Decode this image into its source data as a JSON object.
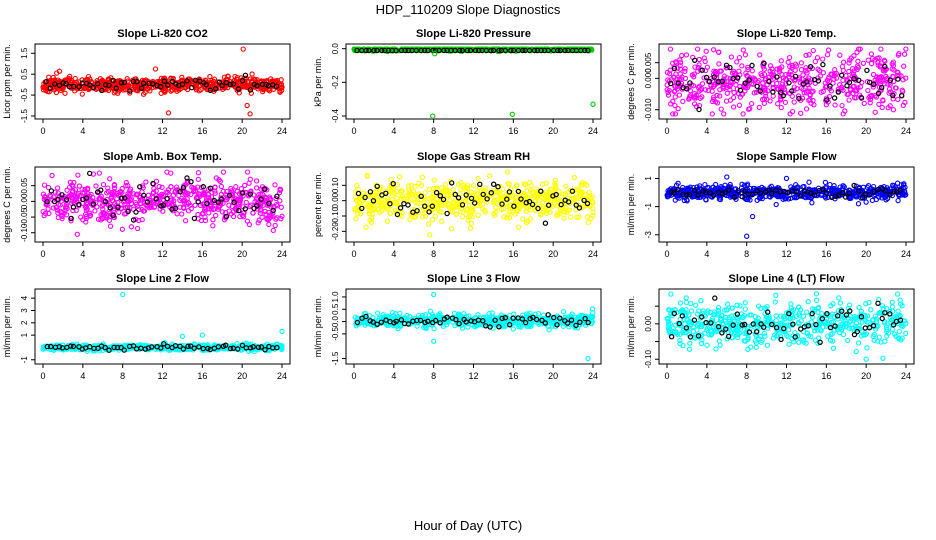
{
  "figure": {
    "title": "HDP_110209  Slope Diagnostics",
    "xlabel": "Hour of Day (UTC)"
  },
  "colors": {
    "red": "#ff0000",
    "green": "#00cc00",
    "magenta": "#ff00ff",
    "yellow": "#ffff00",
    "blue": "#0000ff",
    "cyan": "#00ffff",
    "black": "#000000"
  },
  "chart_data": [
    {
      "type": "scatter",
      "title": "Slope Li-820 CO2",
      "ylabel": "Licor ppm per min.",
      "xlim": [
        0,
        24
      ],
      "ylim": [
        -1.5,
        1.8
      ],
      "xticks": [
        0,
        4,
        8,
        12,
        16,
        20,
        24
      ],
      "xtick_labels": [
        "0",
        "4",
        "8",
        "12",
        "16",
        "20",
        "24"
      ],
      "yticks": [
        -1.5,
        -0.5,
        0.5,
        1.5
      ],
      "ytick_labels": [
        "-1.5",
        "-0.5",
        "0.5",
        "1.5"
      ],
      "color": "red",
      "n": 620,
      "center": 0,
      "spread": 0.18,
      "seed": 11,
      "outliers": [
        [
          20.1,
          1.7
        ],
        [
          12.6,
          -1.35
        ],
        [
          11.3,
          0.75
        ],
        [
          20.5,
          -1.0
        ],
        [
          20.8,
          -1.4
        ]
      ]
    },
    {
      "type": "scatter",
      "title": "Slope Li-820 Pressure",
      "ylabel": "kPa per min.",
      "xlim": [
        0,
        24
      ],
      "ylim": [
        -0.4,
        0.01
      ],
      "xticks": [
        0,
        4,
        8,
        12,
        16,
        20,
        24
      ],
      "xtick_labels": [
        "0",
        "4",
        "8",
        "12",
        "16",
        "20",
        "24"
      ],
      "yticks": [
        0,
        -0.2,
        -0.4
      ],
      "ytick_labels": [
        "0.0",
        "-0.2",
        "-0.4"
      ],
      "color": "green",
      "n": 520,
      "center": -0.005,
      "spread": 0.004,
      "seed": 22,
      "outliers": [
        [
          7.9,
          -0.4
        ],
        [
          15.9,
          -0.39
        ],
        [
          24,
          -0.33
        ],
        [
          8.1,
          -0.03
        ]
      ]
    },
    {
      "type": "scatter",
      "title": "Slope Li-820 Temp.",
      "ylabel": "degrees C per min.",
      "xlim": [
        0,
        24
      ],
      "ylim": [
        -0.012,
        0.01
      ],
      "xticks": [
        0,
        4,
        8,
        12,
        16,
        20,
        24
      ],
      "xtick_labels": [
        "0",
        "4",
        "8",
        "12",
        "16",
        "20",
        "24"
      ],
      "yticks": [
        -0.01,
        0,
        0.005
      ],
      "ytick_labels": [
        "-0.010",
        "0.000",
        "0.005"
      ],
      "color": "magenta",
      "n": 560,
      "center": -0.001,
      "spread": 0.0045,
      "seed": 33,
      "outliers": []
    },
    {
      "type": "scatter",
      "title": "Slope Amb. Box Temp.",
      "ylabel": "degrees C per min.",
      "xlim": [
        0,
        24
      ],
      "ylim": [
        -0.12,
        0.1
      ],
      "xticks": [
        0,
        4,
        8,
        12,
        16,
        20,
        24
      ],
      "xtick_labels": [
        "0",
        "4",
        "8",
        "12",
        "16",
        "20",
        "24"
      ],
      "yticks": [
        -0.1,
        -0.05,
        0,
        0.05
      ],
      "ytick_labels": [
        "-0.10",
        "-0.05",
        "0.00",
        "0.05"
      ],
      "color": "magenta",
      "n": 600,
      "center": 0.0,
      "spread": 0.035,
      "seed": 44,
      "outliers": []
    },
    {
      "type": "scatter",
      "title": "Slope Gas Stream RH",
      "ylabel": "percent per min.",
      "xlim": [
        0,
        24
      ],
      "ylim": [
        -0.25,
        0.2
      ],
      "xticks": [
        0,
        4,
        8,
        12,
        16,
        20,
        24
      ],
      "xtick_labels": [
        "0",
        "4",
        "8",
        "12",
        "16",
        "20",
        "24"
      ],
      "yticks": [
        -0.2,
        -0.1,
        0,
        0.1
      ],
      "ytick_labels": [
        "-0.20",
        "-0.10",
        "0.00",
        "0.10"
      ],
      "color": "yellow",
      "n": 600,
      "center": 0.0,
      "spread": 0.065,
      "seed": 55,
      "outliers": []
    },
    {
      "type": "scatter",
      "title": "Slope Sample Flow",
      "ylabel": "ml/min per min.",
      "xlim": [
        0,
        24
      ],
      "ylim": [
        -3.3,
        1.6
      ],
      "xticks": [
        0,
        4,
        8,
        12,
        16,
        20,
        24
      ],
      "xtick_labels": [
        "0",
        "4",
        "8",
        "12",
        "16",
        "20",
        "24"
      ],
      "yticks": [
        1,
        -1,
        -3
      ],
      "ytick_labels": [
        "1",
        "-1",
        "-3"
      ],
      "color": "blue",
      "n": 600,
      "center": 0.0,
      "spread": 0.25,
      "seed": 66,
      "outliers": [
        [
          8.0,
          -3.1
        ],
        [
          6.0,
          1.1
        ],
        [
          12.0,
          1.0
        ],
        [
          8.6,
          -1.7
        ]
      ]
    },
    {
      "type": "scatter",
      "title": "Slope Line 2 Flow",
      "ylabel": "ml/min per min.",
      "xlim": [
        0,
        24
      ],
      "ylim": [
        -1.1,
        4.5
      ],
      "xticks": [
        0,
        4,
        8,
        12,
        16,
        20,
        24
      ],
      "xtick_labels": [
        "0",
        "4",
        "8",
        "12",
        "16",
        "20",
        "24"
      ],
      "yticks": [
        -1,
        1,
        2,
        3,
        4
      ],
      "ytick_labels": [
        "-1",
        "1",
        "2",
        "3",
        "4"
      ],
      "color": "cyan",
      "n": 580,
      "center": 0.0,
      "spread": 0.12,
      "seed": 77,
      "outliers": [
        [
          8.0,
          4.3
        ],
        [
          16.0,
          1.0
        ],
        [
          24,
          1.3
        ],
        [
          14.0,
          0.9
        ]
      ]
    },
    {
      "type": "scatter",
      "title": "Slope Line 3 Flow",
      "ylabel": "ml/min per min.",
      "xlim": [
        0,
        24
      ],
      "ylim": [
        -1.6,
        1.2
      ],
      "xticks": [
        0,
        4,
        8,
        12,
        16,
        20,
        24
      ],
      "xtick_labels": [
        "0",
        "4",
        "8",
        "12",
        "16",
        "20",
        "24"
      ],
      "yticks": [
        -1.5,
        -0.5,
        0,
        0.5,
        1
      ],
      "ytick_labels": [
        "-1.5",
        "-0.5",
        "0.0",
        "0.5",
        "1.0"
      ],
      "color": "cyan",
      "n": 580,
      "center": 0.05,
      "spread": 0.13,
      "seed": 88,
      "outliers": [
        [
          8.0,
          1.1
        ],
        [
          8.0,
          -0.8
        ],
        [
          23.5,
          -1.5
        ],
        [
          16.0,
          -0.3
        ]
      ]
    },
    {
      "type": "scatter",
      "title": "Slope Line 4 (LT) Flow",
      "ylabel": "ml/min per min.",
      "xlim": [
        0,
        24
      ],
      "ylim": [
        -0.105,
        0.09
      ],
      "xticks": [
        0,
        4,
        8,
        12,
        16,
        20,
        24
      ],
      "xtick_labels": [
        "0",
        "4",
        "8",
        "12",
        "16",
        "20",
        "24"
      ],
      "yticks": [
        -0.1,
        -0.05,
        0,
        0.05
      ],
      "ytick_labels": [
        "-0.10",
        "",
        "0.00",
        ""
      ],
      "color": "cyan",
      "n": 560,
      "center": 0.0,
      "spread": 0.03,
      "seed": 99,
      "outliers": [
        [
          20.0,
          -0.1
        ],
        [
          15.0,
          0.085
        ]
      ]
    }
  ]
}
